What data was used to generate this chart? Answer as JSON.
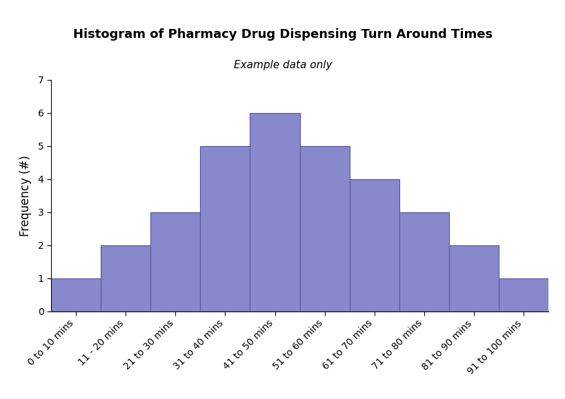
{
  "title": "Histogram of Pharmacy Drug Dispensing Turn Around Times",
  "subtitle": "Example data only",
  "ylabel": "Frequency (#)",
  "categories": [
    "0 to 10 mins",
    "11 - 20 mins",
    "21 to 30 mins",
    "31 to 40 mins",
    "41 to 50 mins",
    "51 to 60 mins",
    "61 to 70 mins",
    "71 to 80 mins",
    "81 to 90 mins",
    "91 to 100 mins"
  ],
  "values": [
    1,
    2,
    3,
    5,
    6,
    5,
    4,
    3,
    2,
    1
  ],
  "bar_color": "#8888cc",
  "bar_edge_color": "#555599",
  "ylim": [
    0,
    7
  ],
  "yticks": [
    0,
    1,
    2,
    3,
    4,
    5,
    6,
    7
  ],
  "title_fontsize": 13,
  "subtitle_fontsize": 11,
  "ylabel_fontsize": 12,
  "tick_label_fontsize": 10,
  "background_color": "#ffffff"
}
